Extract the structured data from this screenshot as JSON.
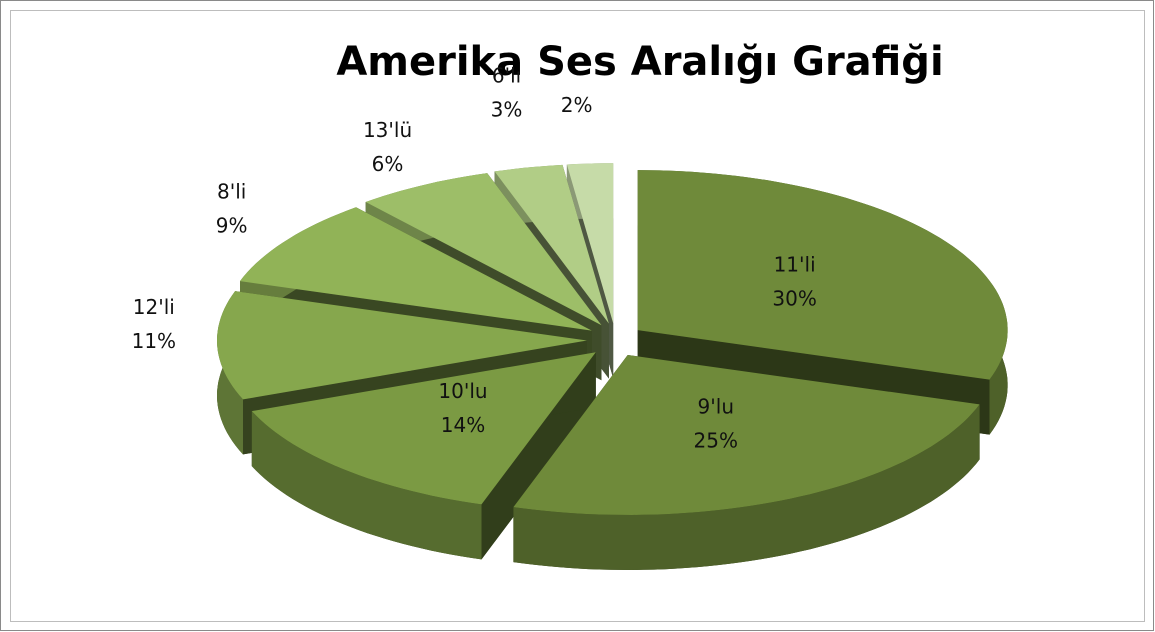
{
  "chart_data": {
    "type": "pie3d",
    "title": "Amerika Ses Aralığı Grafiği",
    "categories": [
      "11'li",
      "9'lu",
      "10'lu",
      "12'li",
      "8'li",
      "13'lü",
      "6'lı",
      null
    ],
    "values": [
      30,
      25,
      14,
      11,
      9,
      6,
      3,
      2
    ],
    "value_labels": [
      "30%",
      "25%",
      "14%",
      "11%",
      "9%",
      "6%",
      "3%",
      "2%"
    ],
    "colors": [
      "#6f8a3a",
      "#6f8a3a",
      "#7b9a43",
      "#86a74d",
      "#91b357",
      "#9dbe68",
      "#b1cd86",
      "#c6dba8"
    ]
  }
}
